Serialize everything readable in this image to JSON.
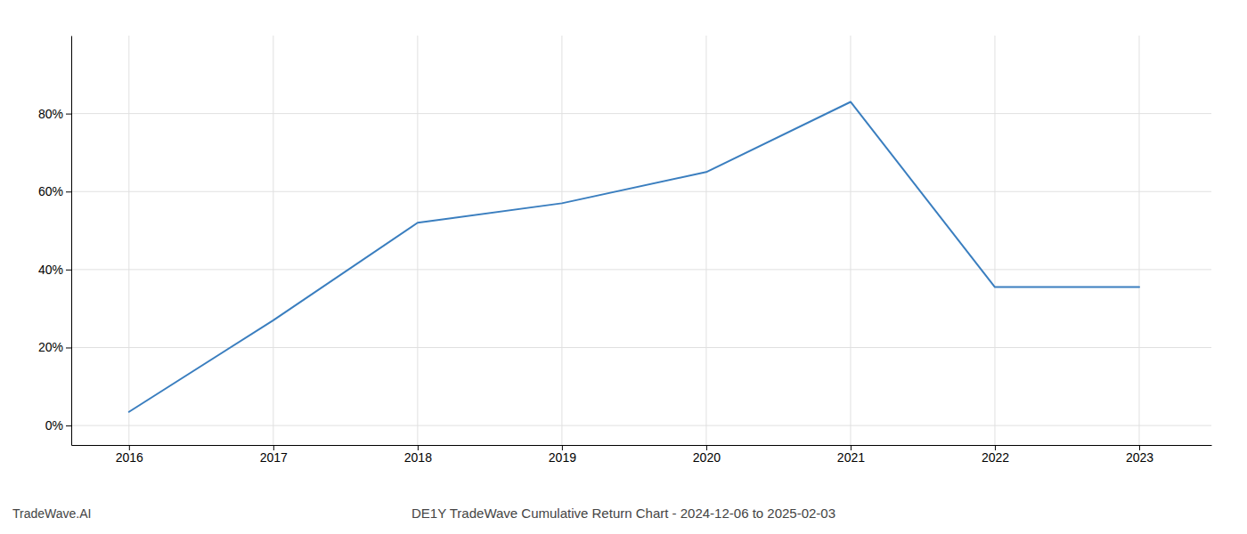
{
  "chart_data": {
    "type": "line",
    "title": "DE1Y TradeWave Cumulative Return Chart - 2024-12-06 to 2025-02-03",
    "annotations": [
      {
        "text": "TradeWave.AI"
      }
    ],
    "x": [
      2016,
      2017,
      2018,
      2019,
      2020,
      2021,
      2022,
      2023
    ],
    "values": [
      3.5,
      27.0,
      52.0,
      57.0,
      65.0,
      83.0,
      35.5,
      35.5
    ],
    "color": "#3a7ebf",
    "xlim": [
      2015.6,
      2023.5
    ],
    "xticks": [
      2016,
      2017,
      2018,
      2019,
      2020,
      2021,
      2022,
      2023
    ],
    "ylim": [
      -5,
      100
    ],
    "yticks": [
      {
        "value": 0,
        "label": "0%"
      },
      {
        "value": 20,
        "label": "20%"
      },
      {
        "value": 40,
        "label": "40%"
      },
      {
        "value": 60,
        "label": "60%"
      },
      {
        "value": 80,
        "label": "80%"
      }
    ],
    "grid": true
  }
}
